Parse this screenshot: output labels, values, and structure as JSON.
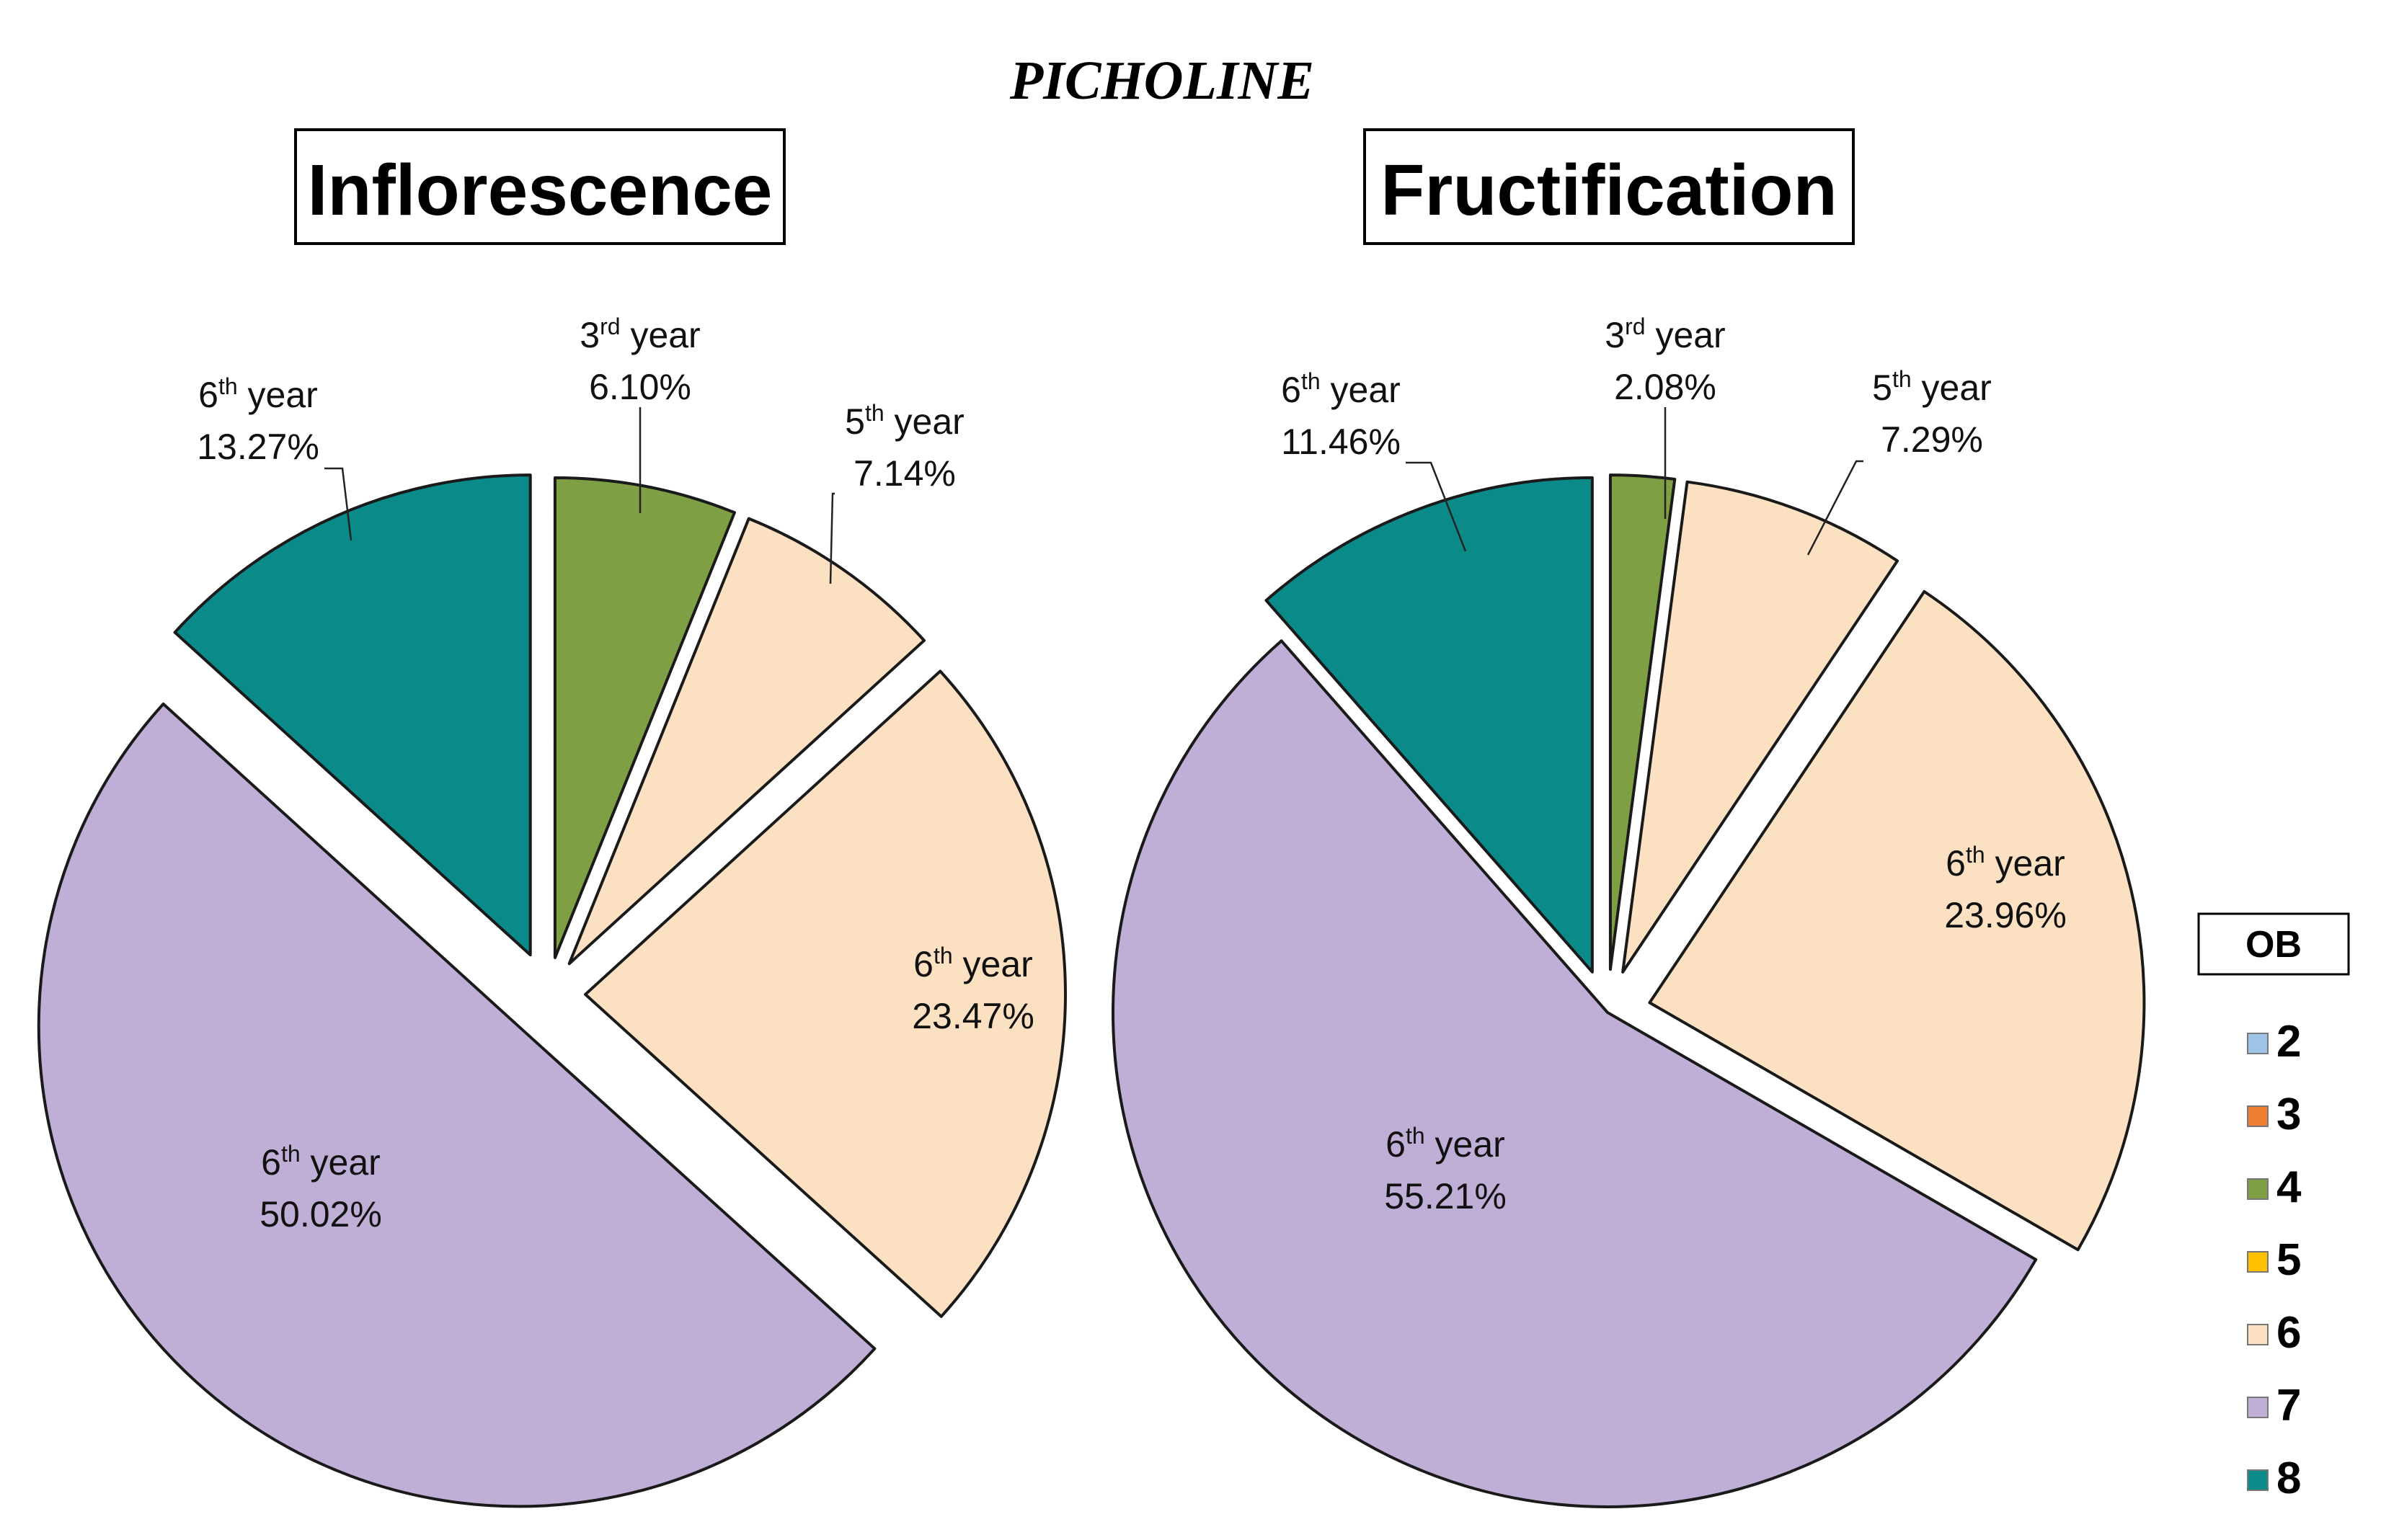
{
  "figure": {
    "title": "PICHOLINE"
  },
  "colors": {
    "ob2": "#9dc3e6",
    "ob3": "#ed7d31",
    "ob4": "#7f9f45",
    "ob5": "#ffc000",
    "ob6": "#fce0c2",
    "ob7": "#bfaed6",
    "ob8": "#0b8a8a"
  },
  "chart_data": [
    {
      "type": "pie",
      "title": "Inflorescence",
      "slices": [
        {
          "ob": "4",
          "label_ordinal": "3",
          "label_suffix": "rd",
          "label_word": "year",
          "value": 6.1,
          "value_text": "6.10%",
          "color_key": "ob4"
        },
        {
          "ob": "6",
          "label_ordinal": "5",
          "label_suffix": "th",
          "label_word": "year",
          "value": 7.14,
          "value_text": "7.14%",
          "color_key": "ob6"
        },
        {
          "ob": "6",
          "label_ordinal": "6",
          "label_suffix": "th",
          "label_word": "year",
          "value": 23.47,
          "value_text": "23.47%",
          "color_key": "ob6"
        },
        {
          "ob": "7",
          "label_ordinal": "6",
          "label_suffix": "th",
          "label_word": "year",
          "value": 50.02,
          "value_text": "50.02%",
          "color_key": "ob7"
        },
        {
          "ob": "8",
          "label_ordinal": "6",
          "label_suffix": "th",
          "label_word": "year",
          "value": 13.27,
          "value_text": "13.27%",
          "color_key": "ob8"
        }
      ]
    },
    {
      "type": "pie",
      "title": "Fructification",
      "slices": [
        {
          "ob": "4",
          "label_ordinal": "3",
          "label_suffix": "rd",
          "label_word": "year",
          "value": 2.08,
          "value_text": "2.08%",
          "color_key": "ob4"
        },
        {
          "ob": "6",
          "label_ordinal": "5",
          "label_suffix": "th",
          "label_word": "year",
          "value": 7.29,
          "value_text": "7.29%",
          "color_key": "ob6"
        },
        {
          "ob": "6",
          "label_ordinal": "6",
          "label_suffix": "th",
          "label_word": "year",
          "value": 23.96,
          "value_text": "23.96%",
          "color_key": "ob6"
        },
        {
          "ob": "7",
          "label_ordinal": "6",
          "label_suffix": "th",
          "label_word": "year",
          "value": 55.21,
          "value_text": "55.21%",
          "color_key": "ob7"
        },
        {
          "ob": "8",
          "label_ordinal": "6",
          "label_suffix": "th",
          "label_word": "year",
          "value": 11.46,
          "value_text": "11.46%",
          "color_key": "ob8"
        }
      ]
    }
  ],
  "legend": {
    "title": "OB",
    "items": [
      {
        "label": "2",
        "color_key": "ob2"
      },
      {
        "label": "3",
        "color_key": "ob3"
      },
      {
        "label": "4",
        "color_key": "ob4"
      },
      {
        "label": "5",
        "color_key": "ob5"
      },
      {
        "label": "6",
        "color_key": "ob6"
      },
      {
        "label": "7",
        "color_key": "ob7"
      },
      {
        "label": "8",
        "color_key": "ob8"
      }
    ]
  }
}
